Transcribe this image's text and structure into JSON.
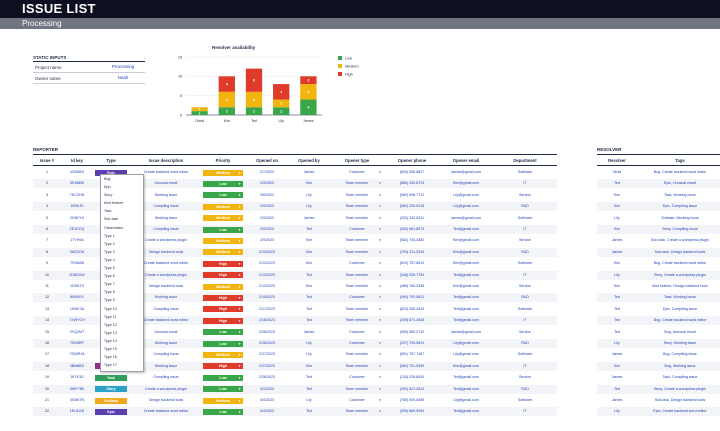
{
  "header": {
    "title": "ISSUE LIST",
    "subtitle": "Processing"
  },
  "static_inputs": {
    "title": "STATIC INPUTS",
    "rows": [
      {
        "label": "Project name",
        "value": "Processing"
      },
      {
        "label": "Owner name",
        "value": "Noah"
      }
    ]
  },
  "chart_data": {
    "type": "bar",
    "stacked": true,
    "title": "Resolver availability",
    "categories": [
      "Omid",
      "Kim",
      "Ted",
      "Lily",
      "James"
    ],
    "series": [
      {
        "name": "Low",
        "color": "#3aa64a",
        "values": [
          1,
          2,
          2,
          2,
          4
        ]
      },
      {
        "name": "Medium",
        "color": "#f2b50f",
        "values": [
          1,
          4,
          4,
          2,
          4
        ]
      },
      {
        "name": "High",
        "color": "#e03a2b",
        "values": [
          0,
          4,
          6,
          4,
          2
        ]
      }
    ],
    "data_labels": [
      [
        "1",
        "2",
        "2",
        "2",
        "4"
      ],
      [
        "1",
        "4",
        "4",
        "2",
        "4"
      ],
      [
        "",
        "4",
        "6",
        "4",
        "2"
      ]
    ],
    "ylim": [
      0,
      15
    ],
    "yticks": [
      "0",
      "5",
      "10",
      "15"
    ],
    "legend_position": "right"
  },
  "colors": {
    "low": "#3aa64a",
    "medium": "#f2b50f",
    "high": "#e03a2b",
    "type_epic": "#5b3fae",
    "type_bug": "#8e2e8a",
    "type_task": "#2f9e59",
    "type_story": "#2aa3c7",
    "type_subtask": "#f2a81d"
  },
  "reporter": {
    "section_title": "REPORTER",
    "columns": [
      "Issue #",
      "Id key",
      "Type",
      "Issue description",
      "Priority",
      "Opened on",
      "Opened by",
      "Opener type",
      "Opener phone",
      "Opener email",
      "Department"
    ],
    "rows": [
      {
        "num": "1",
        "key": "4XZM6G",
        "type": "Epic",
        "desc": "Create backend word editor",
        "priority": "Medium",
        "opened_on": "2/7/2023",
        "by": "James",
        "otype": "Customer",
        "phone": "(830) 556-8827",
        "email": "James@gmail.com",
        "dept": "Software"
      },
      {
        "num": "2",
        "key": "5E6NB8",
        "type": "",
        "desc": "Unusual result",
        "priority": "Low",
        "opened_on": "2/3/2023",
        "by": "Kim",
        "otype": "Team member",
        "phone": "(889) 332-6723",
        "email": "Kim@gmail.com",
        "dept": "IT"
      },
      {
        "num": "3",
        "key": "7KCZHN",
        "type": "",
        "desc": "Working issue",
        "priority": "Low",
        "opened_on": "2/8/2023",
        "by": "Lily",
        "otype": "Team member",
        "phone": "(582) 998-7712",
        "email": "Lily@gmail.com",
        "dept": "Service"
      },
      {
        "num": "4",
        "key": "1B9KJD",
        "type": "",
        "desc": "Compiling issue",
        "priority": "Medium",
        "opened_on": "2/9/2023",
        "by": "Lily",
        "otype": "Team member",
        "phone": "(582) 230-9216",
        "email": "Lily@gmail.com",
        "dept": "R&D"
      },
      {
        "num": "5",
        "key": "2GBVYX",
        "type": "",
        "desc": "Working issue",
        "priority": "Medium",
        "opened_on": "2/9/2023",
        "by": "James",
        "otype": "Team member",
        "phone": "(330) 332-6331",
        "email": "James@gmail.com",
        "dept": "Software"
      },
      {
        "num": "6",
        "key": "ZE1DOQ",
        "type": "",
        "desc": "Compiling issue",
        "priority": "Low",
        "opened_on": "2/9/2023",
        "by": "Ted",
        "otype": "Customer",
        "phone": "(330) 981-8573",
        "email": "Ted@gmail.com",
        "dept": "IT"
      },
      {
        "num": "7",
        "key": "1TYH9A",
        "type": "",
        "desc": "Create a wordpress plugin",
        "priority": "Medium",
        "opened_on": "2/9/2023",
        "by": "Kim",
        "otype": "Team member",
        "phone": "(582) 745-4382",
        "email": "Kim@gmail.com",
        "dept": "Service"
      },
      {
        "num": "8",
        "key": "3AEXOK",
        "type": "",
        "desc": "Design backend tools",
        "priority": "Medium",
        "opened_on": "2/10/2023",
        "by": "Kim",
        "otype": "Team member",
        "phone": "(793) 311-3244",
        "email": "Kim@gmail.com",
        "dept": "R&D"
      },
      {
        "num": "9",
        "key": "7RX8AB",
        "type": "",
        "desc": "Create backend word editor",
        "priority": "High",
        "opened_on": "2/12/2023",
        "by": "Kim",
        "otype": "Customer",
        "phone": "(629) 757-8612",
        "email": "Kim@gmail.com",
        "dept": "Software"
      },
      {
        "num": "10",
        "key": "2DBZUW",
        "type": "",
        "desc": "Create a wordpress plugin",
        "priority": "High",
        "opened_on": "2/13/2023",
        "by": "Ted",
        "otype": "Team member",
        "phone": "(348) 539-7754",
        "email": "Ted@gmail.com",
        "dept": "IT"
      },
      {
        "num": "11",
        "key": "1DSKTS",
        "type": "",
        "desc": "Design backend tools",
        "priority": "Medium",
        "opened_on": "2/13/2023",
        "by": "Kim",
        "otype": "Team member",
        "phone": "(488) 786-3398",
        "email": "Kim@gmail.com",
        "dept": "Service"
      },
      {
        "num": "12",
        "key": "8N9XEX",
        "type": "",
        "desc": "Working issue",
        "priority": "High",
        "opened_on": "2/15/2023",
        "by": "Ted",
        "otype": "Customer",
        "phone": "(490) 792-8611",
        "email": "Ted@gmail.com",
        "dept": "R&D"
      },
      {
        "num": "13",
        "key": "1KMK3A",
        "type": "",
        "desc": "Compiling issue",
        "priority": "High",
        "opened_on": "2/17/2023",
        "by": "Ted",
        "otype": "Team member",
        "phone": "(823) 306-2643",
        "email": "Ted@gmail.com",
        "dept": "Software"
      },
      {
        "num": "14",
        "key": "7XWYCH",
        "type": "",
        "desc": "Create backend word editor",
        "priority": "High",
        "opened_on": "2/18/2023",
        "by": "Ted",
        "otype": "Team member",
        "phone": "(249) 671-4518",
        "email": "Ted@gmail.com",
        "dept": "IT"
      },
      {
        "num": "15",
        "key": "2YQ2MT",
        "type": "",
        "desc": "Unusual result",
        "priority": "Low",
        "opened_on": "2/26/2023",
        "by": "James",
        "otype": "Customer",
        "phone": "(955) 589-2742",
        "email": "James@gmail.com",
        "dept": "Service"
      },
      {
        "num": "16",
        "key": "7EK8RP",
        "type": "",
        "desc": "Working issue",
        "priority": "Low",
        "opened_on": "2/26/2023",
        "by": "Lily",
        "otype": "Customer",
        "phone": "(227) 793-5691",
        "email": "Lily@gmail.com",
        "dept": "R&D"
      },
      {
        "num": "17",
        "key": "7GWRJA",
        "type": "",
        "desc": "Compiling issue",
        "priority": "Medium",
        "opened_on": "2/27/2023",
        "by": "Lily",
        "otype": "Team member",
        "phone": "(851) 757-7487",
        "email": "Lily@gmail.com",
        "dept": "Software"
      },
      {
        "num": "18",
        "key": "3BM6BD",
        "type": "Bug",
        "desc": "Working issue",
        "priority": "High",
        "opened_on": "2/27/2023",
        "by": "Kim",
        "otype": "Team member",
        "phone": "(582) 701-5399",
        "email": "Kim@gmail.com",
        "dept": "IT"
      },
      {
        "num": "19",
        "key": "1KTK3G",
        "type": "Task",
        "desc": "Compiling issue",
        "priority": "Low",
        "opened_on": "2/28/2023",
        "by": "Ted",
        "otype": "Customer",
        "phone": "(234) 228-6530",
        "email": "Ted@gmail.com",
        "dept": "Service"
      },
      {
        "num": "20",
        "key": "5WP7B5",
        "type": "Story",
        "desc": "Create a wordpress plugin",
        "priority": "Low",
        "opened_on": "3/1/2023",
        "by": "Ted",
        "otype": "Team member",
        "phone": "(393) 521-2524",
        "email": "Ted@gmail.com",
        "dept": "R&D"
      },
      {
        "num": "21",
        "key": "4XM6TN",
        "type": "Subtask",
        "desc": "Design backend tools",
        "priority": "Medium",
        "opened_on": "3/4/2023",
        "by": "Lily",
        "otype": "Customer",
        "phone": "(780) 539-6389",
        "email": "Lily@gmail.com",
        "dept": "Software"
      },
      {
        "num": "22",
        "key": "1EU1GD",
        "type": "Epic",
        "desc": "Create backend word editor",
        "priority": "Low",
        "opened_on": "3/4/2023",
        "by": "Ted",
        "otype": "Team member",
        "phone": "(335) 869-9954",
        "email": "Ted@gmail.com",
        "dept": "IT"
      }
    ]
  },
  "type_dropdown": {
    "options": [
      "Bug",
      "Epic",
      "Story",
      "Mod feature",
      "Task",
      "Sub-task",
      "Observation",
      "Type 1",
      "Type 2",
      "Type 3",
      "Type 4",
      "Type 5",
      "Type 6",
      "Type 7",
      "Type 8",
      "Type 9",
      "Type 10",
      "Type 11",
      "Type 12",
      "Type 13",
      "Type 14",
      "Type 15",
      "Type 16",
      "Type 17"
    ]
  },
  "resolver": {
    "section_title": "RESOLVER",
    "columns": [
      "Resolver",
      "Tags"
    ],
    "rows": [
      {
        "name": "Omid",
        "tags": "Bug, Create backend word editor"
      },
      {
        "name": "Ted",
        "tags": "Epic, Unusual result"
      },
      {
        "name": "Kim",
        "tags": "Task, Working issue"
      },
      {
        "name": "Kim",
        "tags": "Epic, Compiling issue"
      },
      {
        "name": "Lily",
        "tags": "Subtask, Working issue"
      },
      {
        "name": "Kim",
        "tags": "Story, Compiling issue"
      },
      {
        "name": "James",
        "tags": "Sub-task, Create a wordpress plugin"
      },
      {
        "name": "James",
        "tags": "Sub-task, Design backend tools"
      },
      {
        "name": "Kim",
        "tags": "Bug, Create backend word editor"
      },
      {
        "name": "Lily",
        "tags": "Story, Create a wordpress plugin"
      },
      {
        "name": "Kim",
        "tags": "Mod feature, Design backend tools"
      },
      {
        "name": "Ted",
        "tags": "Task, Working issue"
      },
      {
        "name": "Ted",
        "tags": "Epic, Compiling issue"
      },
      {
        "name": "Ted",
        "tags": "Bug, Create backend word editor"
      },
      {
        "name": "Ted",
        "tags": "Bug, Unusual result"
      },
      {
        "name": "Lily",
        "tags": "Story, Working issue"
      },
      {
        "name": "James",
        "tags": "Bug, Compiling issue"
      },
      {
        "name": "Kim",
        "tags": "Bug, Working issue"
      },
      {
        "name": "James",
        "tags": "Task, Compiling issue"
      },
      {
        "name": "Ted",
        "tags": "Story, Create a wordpress plugin"
      },
      {
        "name": "James",
        "tags": "Sub-task, Design backend tools"
      },
      {
        "name": "Lily",
        "tags": "Epic, Create backend word editor"
      }
    ]
  }
}
